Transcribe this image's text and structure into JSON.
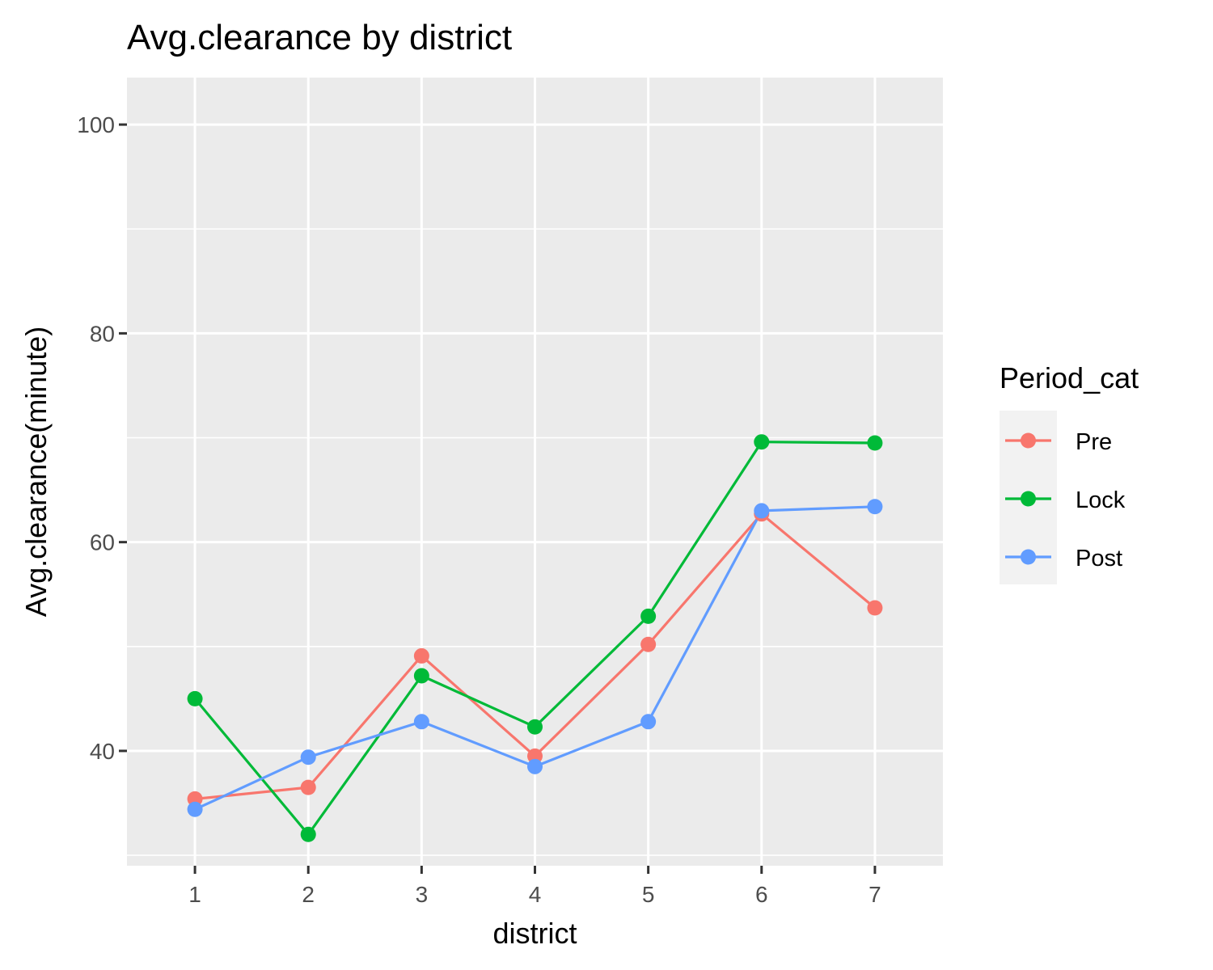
{
  "chart_data": {
    "type": "line",
    "title": "Avg.clearance by district",
    "xlabel": "district",
    "ylabel": "Avg.clearance(minute)",
    "categories": [
      "1",
      "2",
      "3",
      "4",
      "5",
      "6",
      "7"
    ],
    "ylim": [
      29,
      104.5
    ],
    "yticks": [
      40,
      60,
      80,
      100
    ],
    "grid": true,
    "legend": {
      "title": "Period_cat",
      "placement": "right"
    },
    "series": [
      {
        "name": "Pre",
        "color": "#F8766D",
        "values": [
          35.4,
          36.5,
          49.1,
          39.5,
          50.2,
          62.7,
          53.7
        ]
      },
      {
        "name": "Lock",
        "color": "#00BA38",
        "values": [
          45.0,
          32.0,
          47.2,
          42.3,
          52.9,
          69.6,
          69.5
        ]
      },
      {
        "name": "Post",
        "color": "#619CFF",
        "values": [
          34.4,
          39.4,
          42.8,
          38.5,
          42.8,
          63.0,
          63.4
        ]
      }
    ]
  }
}
